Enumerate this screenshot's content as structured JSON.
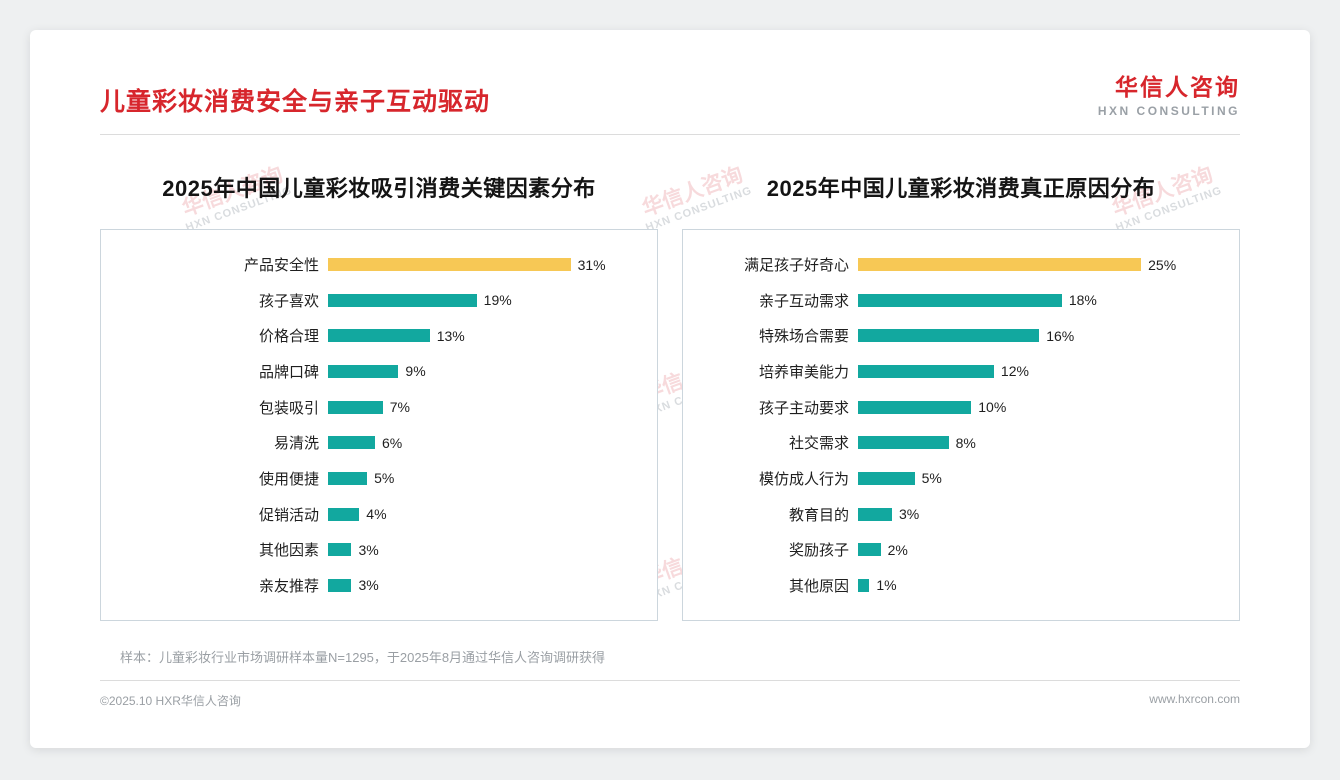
{
  "page": {
    "title": "儿童彩妆消费安全与亲子互动驱动",
    "logo": {
      "name": "华信人咨询",
      "sub": "HXN CONSULTING"
    },
    "watermark": {
      "line1": "华信人咨询",
      "line2": "HXN CONSULTING"
    },
    "footer": {
      "note": "样本：儿童彩妆行业市场调研样本量N=1295，于2025年8月通过华信人咨询调研获得",
      "copyright": "©2025.10 HXR华信人咨询",
      "website": "www.hxrcon.com"
    },
    "colors": {
      "accent_red": "#d7262c",
      "bar_teal": "#12a89f",
      "bar_gold": "#f7c855",
      "text_dark": "#1f1f1f",
      "text_muted": "#9a9fa4"
    }
  },
  "chart_data": [
    {
      "type": "bar",
      "orientation": "horizontal",
      "title": "2025年中国儿童彩妆吸引消费关键因素分布",
      "categories": [
        "产品安全性",
        "孩子喜欢",
        "价格合理",
        "品牌口碑",
        "包装吸引",
        "易清洗",
        "使用便捷",
        "促销活动",
        "其他因素",
        "亲友推荐"
      ],
      "values": [
        31,
        19,
        13,
        9,
        7,
        6,
        5,
        4,
        3,
        3
      ],
      "value_suffix": "%",
      "highlight_index": 0,
      "xlabel": "",
      "ylabel": "",
      "xlim": [
        0,
        31
      ],
      "grid": false,
      "legend": false
    },
    {
      "type": "bar",
      "orientation": "horizontal",
      "title": "2025年中国儿童彩妆消费真正原因分布",
      "categories": [
        "满足孩子好奇心",
        "亲子互动需求",
        "特殊场合需要",
        "培养审美能力",
        "孩子主动要求",
        "社交需求",
        "模仿成人行为",
        "教育目的",
        "奖励孩子",
        "其他原因"
      ],
      "values": [
        25,
        18,
        16,
        12,
        10,
        8,
        5,
        3,
        2,
        1
      ],
      "value_suffix": "%",
      "highlight_index": 0,
      "xlabel": "",
      "ylabel": "",
      "xlim": [
        0,
        25
      ],
      "grid": false,
      "legend": false
    }
  ]
}
